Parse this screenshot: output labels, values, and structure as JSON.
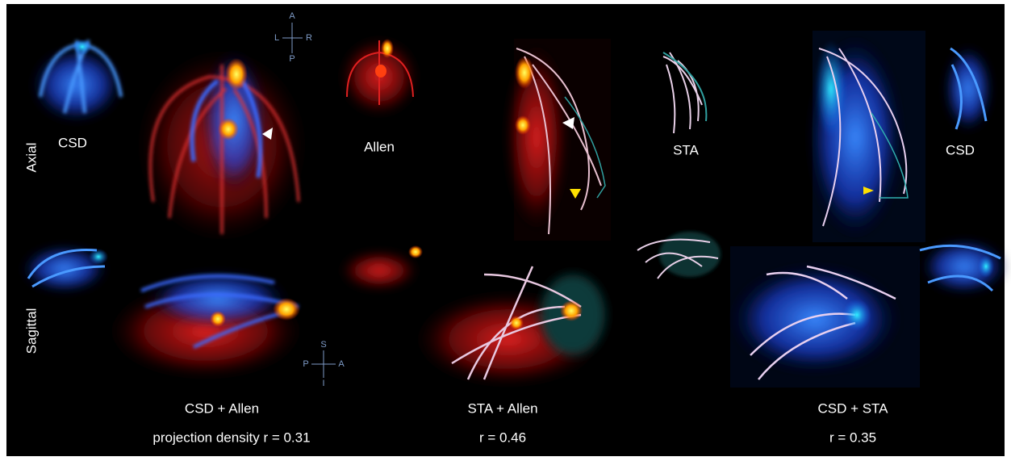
{
  "row_labels": [
    "Axial",
    "Sagittal"
  ],
  "panel_labels": [
    "CSD",
    "Allen",
    "STA",
    "CSD"
  ],
  "axial_compass": {
    "anterior": "A",
    "left": "L",
    "right": "R",
    "posterior": "P"
  },
  "sagittal_compass": {
    "superior": "S",
    "posterior": "P",
    "anterior": "A",
    "inferior": "I"
  },
  "captions": [
    {
      "title": "CSD + Allen",
      "stat": "projection density r = 0.31"
    },
    {
      "title": "STA + Allen",
      "stat": "r = 0.46"
    },
    {
      "title": "CSD + STA",
      "stat": "r = 0.35"
    }
  ]
}
